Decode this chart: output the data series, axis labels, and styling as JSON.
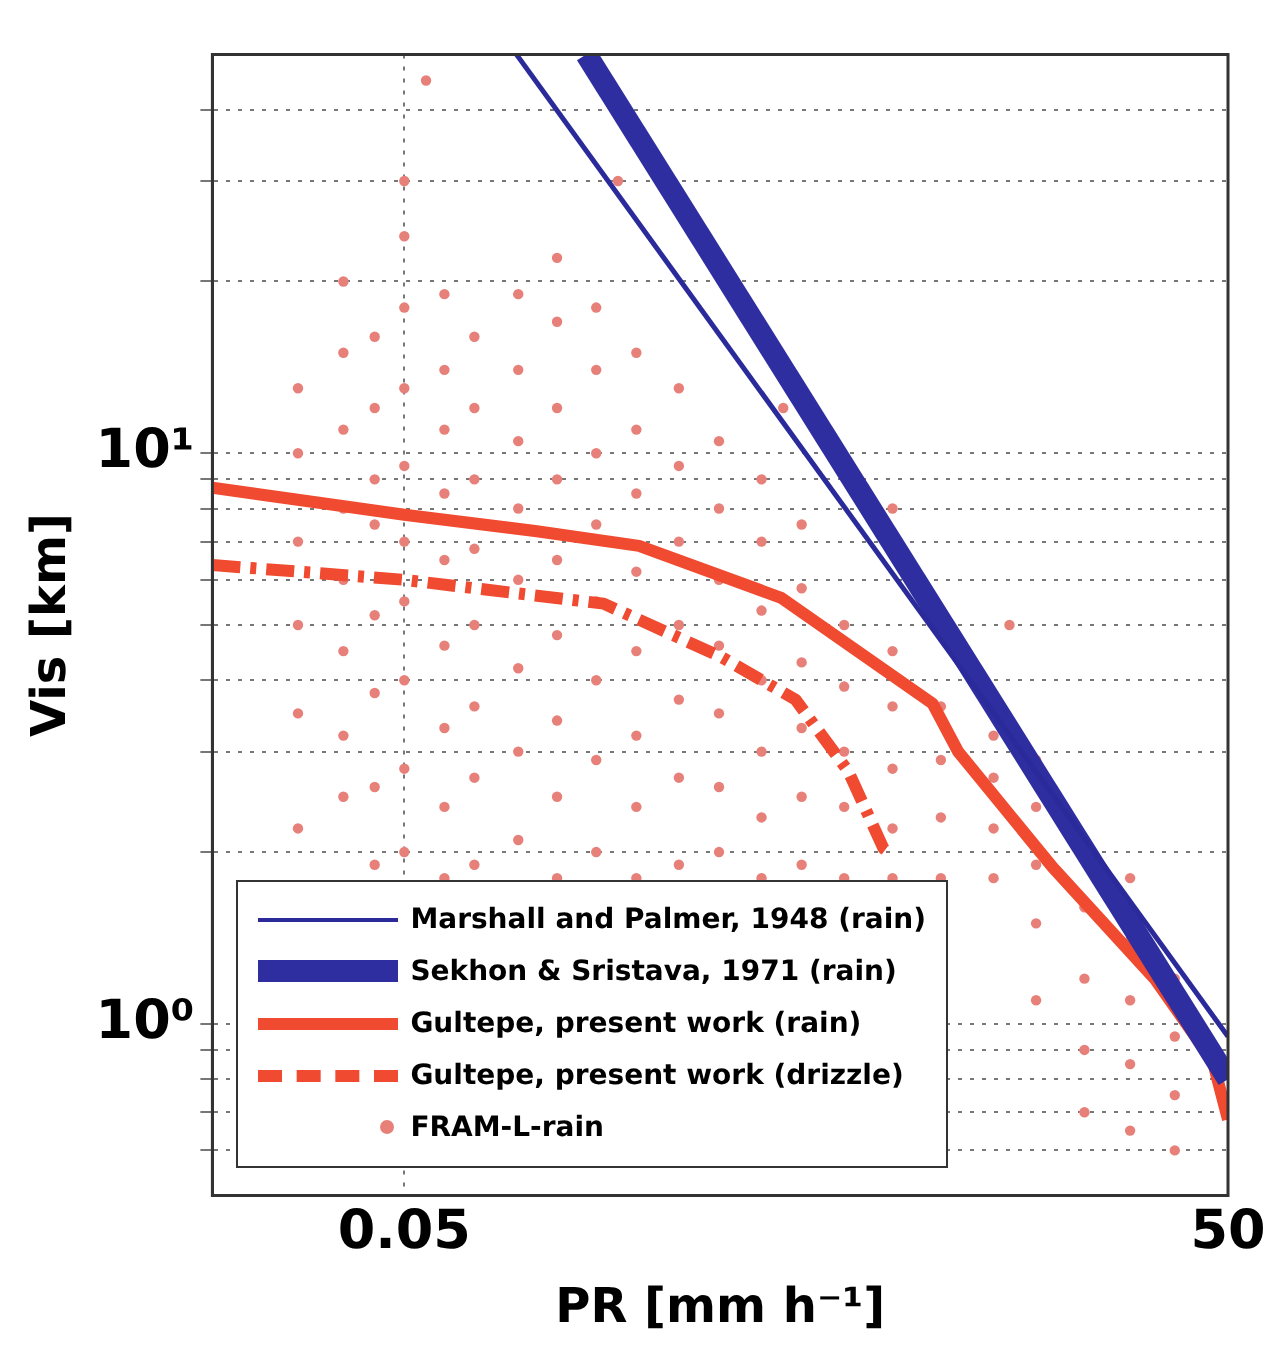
{
  "chart_data": {
    "type": "line",
    "xlabel": "PR [mm h⁻¹]",
    "ylabel": "Vis [km]",
    "log": "xy",
    "grid": true,
    "legend": "bottom left",
    "xlim": [
      0.01,
      50
    ],
    "xticks": [
      0.05,
      50
    ],
    "ylim": [
      0.5,
      50
    ],
    "yticks": [
      {
        "value": 0.6,
        "label": null
      },
      {
        "value": 0.7,
        "label": null
      },
      {
        "value": 0.8,
        "label": null
      },
      {
        "value": 0.9,
        "label": null
      },
      {
        "value": 1,
        "label": "10⁰"
      },
      {
        "value": 2,
        "label": null
      },
      {
        "value": 3,
        "label": null
      },
      {
        "value": 4,
        "label": null
      },
      {
        "value": 5,
        "label": null
      },
      {
        "value": 6,
        "label": null
      },
      {
        "value": 7,
        "label": null
      },
      {
        "value": 8,
        "label": null
      },
      {
        "value": 9,
        "label": null
      },
      {
        "value": 10,
        "label": "10¹"
      },
      {
        "value": 20,
        "label": null
      },
      {
        "value": 30,
        "label": null
      },
      {
        "value": 40,
        "label": null
      }
    ],
    "series": [
      {
        "type": "scatter",
        "name": "FRAM-L-rain",
        "color": "#e8807a",
        "marker": "circle",
        "x": [
          0.0205,
          0.0205,
          0.0205,
          0.0205,
          0.0205,
          0.0205,
          0.03,
          0.03,
          0.03,
          0.03,
          0.03,
          0.03,
          0.03,
          0.03,
          0.039,
          0.039,
          0.039,
          0.039,
          0.039,
          0.039,
          0.039,
          0.039,
          0.05,
          0.05,
          0.05,
          0.05,
          0.05,
          0.05,
          0.05,
          0.05,
          0.05,
          0.05,
          0.07,
          0.07,
          0.07,
          0.07,
          0.07,
          0.07,
          0.07,
          0.07,
          0.07,
          0.09,
          0.09,
          0.09,
          0.09,
          0.09,
          0.09,
          0.09,
          0.09,
          0.13,
          0.13,
          0.13,
          0.13,
          0.13,
          0.13,
          0.13,
          0.13,
          0.18,
          0.18,
          0.18,
          0.18,
          0.18,
          0.18,
          0.18,
          0.18,
          0.18,
          0.25,
          0.25,
          0.25,
          0.25,
          0.25,
          0.25,
          0.25,
          0.25,
          0.35,
          0.35,
          0.35,
          0.35,
          0.35,
          0.35,
          0.35,
          0.35,
          0.5,
          0.5,
          0.5,
          0.5,
          0.5,
          0.5,
          0.5,
          0.7,
          0.7,
          0.7,
          0.7,
          0.7,
          0.7,
          0.7,
          1,
          1,
          1,
          1,
          1,
          1,
          1,
          1.4,
          1.4,
          1.4,
          1.4,
          1.4,
          1.4,
          2,
          2,
          2,
          2,
          2,
          3,
          3,
          3,
          3,
          3,
          4.5,
          4.5,
          4.5,
          4.5,
          7,
          7,
          7,
          7,
          10,
          10,
          10,
          10,
          10,
          15,
          15,
          15,
          15,
          22,
          22,
          22,
          22,
          22,
          32,
          32,
          32,
          32,
          0.3,
          1.2,
          3,
          8,
          0.06
        ],
        "values": [
          2.2,
          3.5,
          5,
          7,
          10,
          13,
          2.5,
          3.2,
          4.5,
          6,
          8,
          11,
          15,
          20,
          1.9,
          2.6,
          3.8,
          5.2,
          7.5,
          9,
          12,
          16,
          2,
          2.8,
          4,
          5.5,
          7,
          9.5,
          13,
          18,
          24,
          30,
          1.8,
          2.4,
          3.3,
          4.6,
          6.5,
          8.5,
          11,
          14,
          19,
          1.9,
          2.7,
          3.6,
          5,
          6.8,
          9,
          12,
          16,
          2.1,
          3,
          4.2,
          6,
          8,
          10.5,
          14,
          19,
          1.8,
          2.5,
          3.4,
          4.8,
          6.5,
          9,
          12,
          17,
          22,
          2,
          2.9,
          4,
          5.5,
          7.5,
          10,
          14,
          18,
          1.8,
          2.4,
          3.2,
          4.5,
          6.2,
          8.5,
          11,
          15,
          1.9,
          2.7,
          3.7,
          5,
          7,
          9.5,
          13,
          2,
          2.6,
          3.5,
          4.6,
          6,
          8,
          10.5,
          1.8,
          2.3,
          3,
          4,
          5.3,
          7,
          9,
          1.9,
          2.5,
          3.3,
          4.3,
          5.8,
          7.5,
          1.8,
          2.4,
          3,
          3.9,
          5,
          1.8,
          2.2,
          2.8,
          3.6,
          4.5,
          1.8,
          2.3,
          2.9,
          3.6,
          1.8,
          2.2,
          2.7,
          3.2,
          1.1,
          1.5,
          1.9,
          2.4,
          2.9,
          0.7,
          0.9,
          1.2,
          1.6,
          0.65,
          0.85,
          1.1,
          1.4,
          1.8,
          0.6,
          0.75,
          0.95,
          1.2,
          30,
          12,
          8,
          5,
          45
        ]
      },
      {
        "name": "Marshall and Palmer, 1948 (rain)",
        "color": "#2a2a9a",
        "line_style": "solid",
        "x": [
          0.128,
          50
        ],
        "values": [
          50,
          0.95
        ]
      },
      {
        "name": "Sekhon & Sristava, 1971 (rain)",
        "color": "#2e2ea0",
        "line_style": "solid",
        "x": [
          0.23,
          50
        ],
        "values": [
          50,
          0.8
        ]
      },
      {
        "name": "Gultepe, present work (rain)",
        "color": "#f04a30",
        "line_style": "solid",
        "x": [
          0.01,
          0.05,
          0.152,
          0.358,
          1.18,
          4.2,
          5.2,
          11.5,
          27,
          44,
          50
        ],
        "values": [
          8.7,
          7.8,
          7.3,
          6.88,
          5.58,
          3.64,
          3.0,
          1.88,
          1.2,
          0.86,
          0.68
        ]
      },
      {
        "name": "Gultepe, present work (drizzle)",
        "color": "#f04a30",
        "line_style": "dashed",
        "x": [
          0.01,
          0.05,
          0.266,
          0.71,
          1.33,
          2.07,
          2.78,
          2.9
        ],
        "values": [
          6.37,
          6.0,
          5.45,
          4.4,
          3.7,
          2.77,
          2.03,
          2.0
        ]
      }
    ]
  }
}
